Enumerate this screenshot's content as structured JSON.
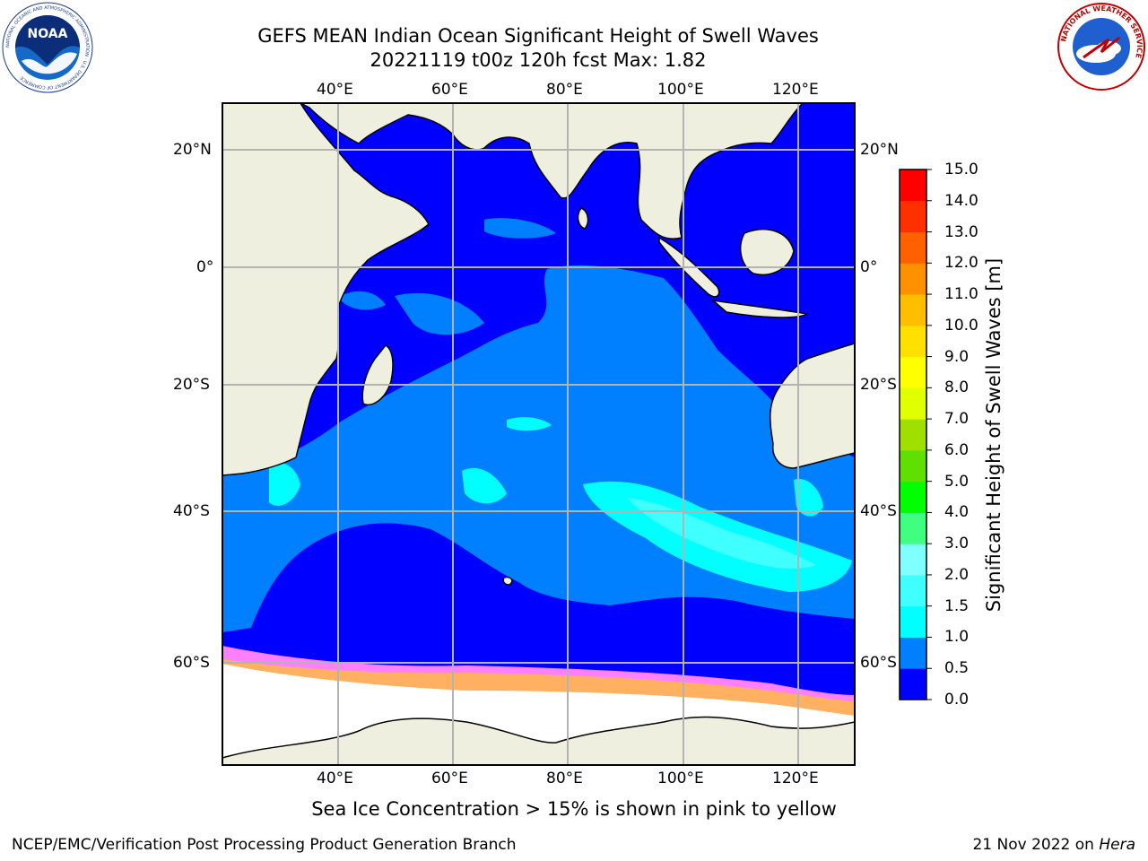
{
  "header": {
    "title_line1": "GEFS MEAN Indian Ocean Significant Height of Swell Waves",
    "title_line2": "20221119 t00z 120h fcst   Max: 1.82"
  },
  "logos": {
    "left": {
      "icon": "noaa-logo",
      "text": "NOAA",
      "ring_text": "NATIONAL OCEANIC AND ATMOSPHERIC ADMINISTRATION · U.S. DEPARTMENT OF COMMERCE"
    },
    "right": {
      "icon": "nws-logo",
      "ring_text": "NATIONAL WEATHER SERVICE"
    }
  },
  "map": {
    "projection": "equirectangular",
    "lon_range": [
      20,
      129
    ],
    "lat_range": [
      -72,
      28
    ],
    "lon_ticks": [
      "40°E",
      "60°E",
      "80°E",
      "100°E",
      "120°E"
    ],
    "lat_ticks": [
      "20°N",
      "0°",
      "20°S",
      "40°S",
      "60°S"
    ],
    "land_color": "#efefdf",
    "ice_color": "#ffffff",
    "grid_color": "#b3b3b3"
  },
  "colorbar": {
    "label": "Significant Height of Swell Waves [m]",
    "ticks": [
      "0.0",
      "0.5",
      "1.0",
      "1.5",
      "2.0",
      "3.0",
      "4.0",
      "5.0",
      "6.0",
      "7.0",
      "8.0",
      "9.0",
      "10.0",
      "11.0",
      "12.0",
      "13.0",
      "14.0",
      "15.0"
    ],
    "colors": [
      "#0000ff",
      "#0080ff",
      "#00ffff",
      "#40ffff",
      "#80ffff",
      "#40ff80",
      "#00ff00",
      "#60e000",
      "#a0e000",
      "#e0ff00",
      "#ffff00",
      "#ffe000",
      "#ffbf00",
      "#ff9000",
      "#ff6000",
      "#ff3000",
      "#ff0000"
    ]
  },
  "footer": {
    "caption": "Sea Ice Concentration > 15% is shown in pink to yellow",
    "credit": "NCEP/EMC/Verification Post Processing Product Generation Branch",
    "date": "21 Nov 2022 on ",
    "machine": "Hera"
  }
}
